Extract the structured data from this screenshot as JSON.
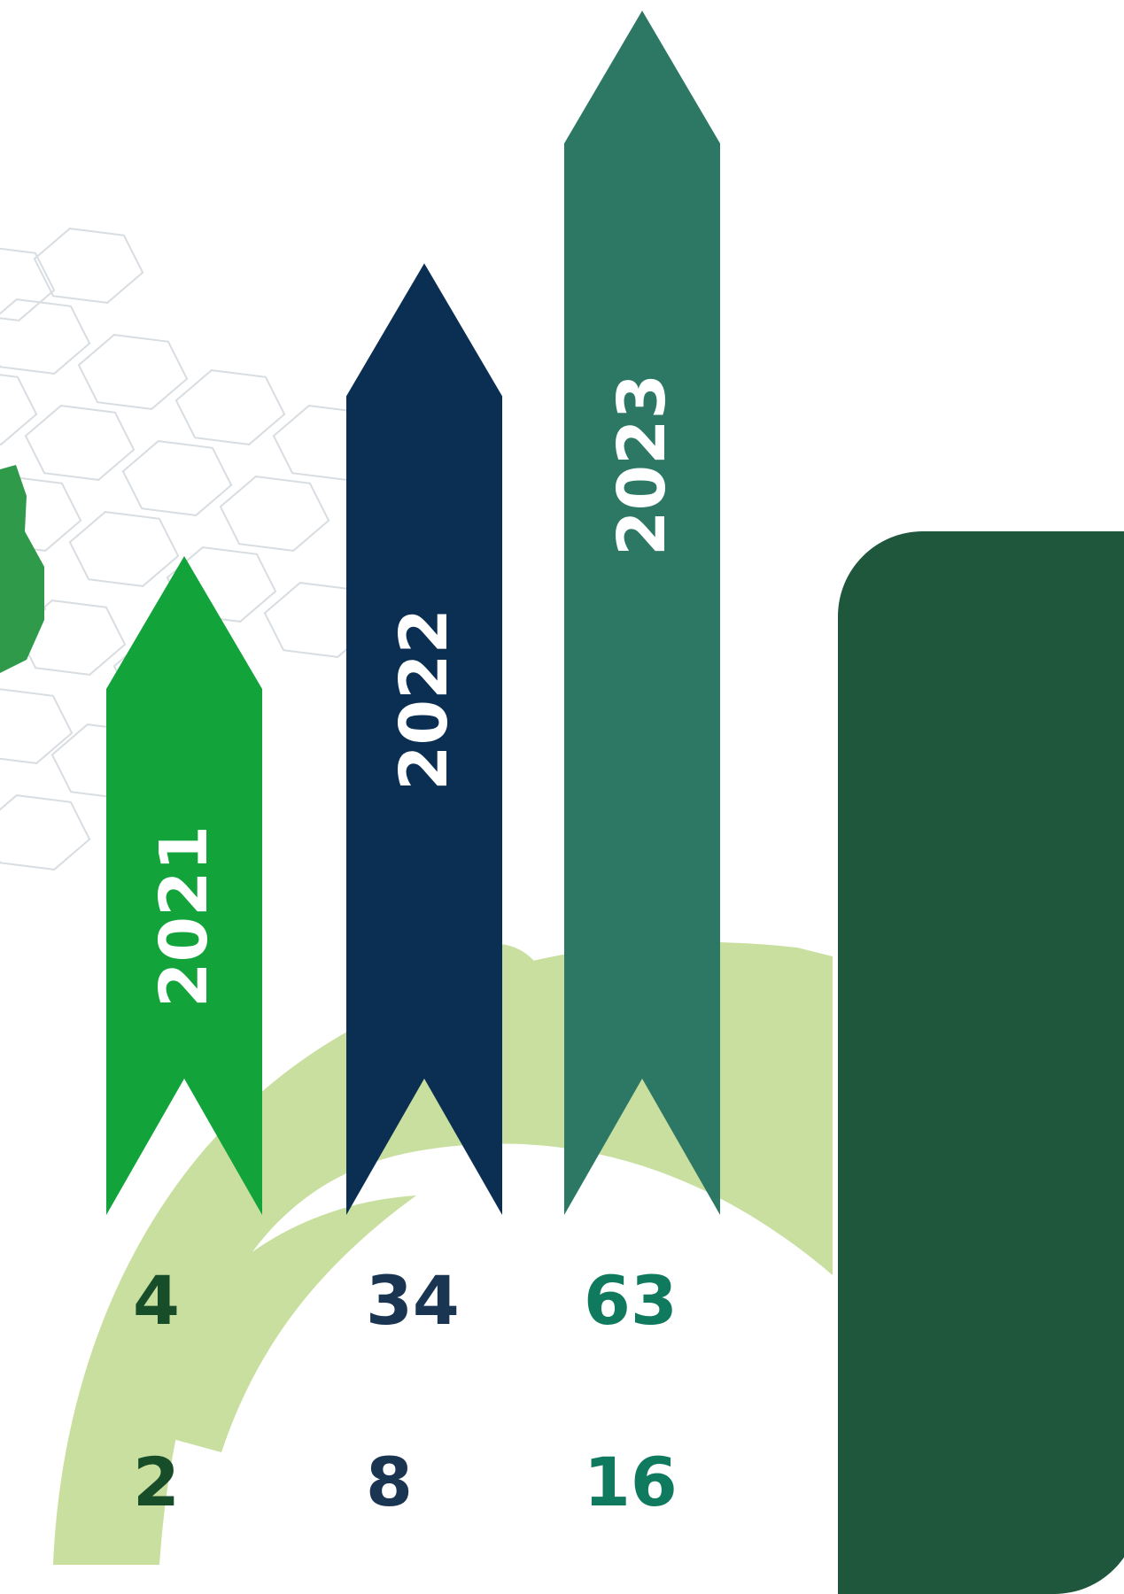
{
  "chart_data": {
    "type": "bar",
    "categories": [
      "2021",
      "2022",
      "2023"
    ],
    "series": [
      {
        "values": [
          4,
          34,
          63
        ]
      },
      {
        "values": [
          2,
          8,
          16
        ]
      }
    ],
    "title": "",
    "xlabel": "",
    "ylabel": "",
    "colors": [
      "#12a43b",
      "#0b2f52",
      "#2c7865"
    ],
    "value_colors": [
      "#184d2a",
      "#1a3552",
      "#107a5f"
    ]
  },
  "decor": {
    "panel_color": "#1e573c",
    "swoosh_color": "#c9df9f",
    "hex_color": "#d8dde2"
  }
}
